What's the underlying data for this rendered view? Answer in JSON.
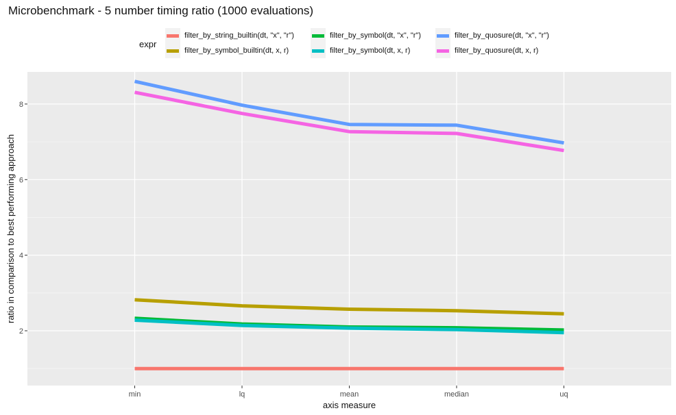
{
  "chart_data": {
    "type": "line",
    "title": "Microbenchmark - 5 number timing ratio (1000 evaluations)",
    "xlabel": "axis measure",
    "ylabel": "ratio in comparison to best performing approach",
    "categories": [
      "min",
      "lq",
      "mean",
      "median",
      "uq"
    ],
    "ylim": [
      0.55,
      8.85
    ],
    "yticks": [
      2,
      4,
      6,
      8
    ],
    "grid": true,
    "legend_title": "expr",
    "legend_position": "top",
    "series": [
      {
        "name": "filter_by_string_builtin(dt, \"x\", \"r\")",
        "color": "#F8766D",
        "values": [
          1.0,
          1.0,
          1.0,
          1.0,
          1.0
        ]
      },
      {
        "name": "filter_by_symbol_builtin(dt, x, r)",
        "color": "#B79F00",
        "values": [
          2.82,
          2.66,
          2.57,
          2.53,
          2.45
        ]
      },
      {
        "name": "filter_by_symbol(dt, \"x\", \"r\")",
        "color": "#00BA38",
        "values": [
          2.33,
          2.18,
          2.1,
          2.08,
          2.02
        ]
      },
      {
        "name": "filter_by_symbol(dt, x, r)",
        "color": "#00BFC4",
        "values": [
          2.28,
          2.14,
          2.07,
          2.03,
          1.95
        ]
      },
      {
        "name": "filter_by_quosure(dt, \"x\", \"r\")",
        "color": "#619CFF",
        "values": [
          8.6,
          7.97,
          7.46,
          7.44,
          6.97
        ]
      },
      {
        "name": "filter_by_quosure(dt, x, r)",
        "color": "#F564E3",
        "values": [
          8.31,
          7.75,
          7.27,
          7.22,
          6.77
        ]
      }
    ]
  }
}
